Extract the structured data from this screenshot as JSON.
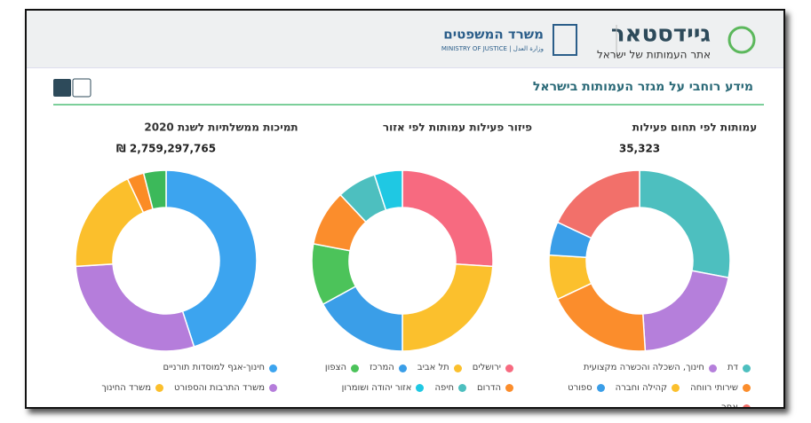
{
  "header": {
    "brand": "גיידסטאר",
    "tagline": "אתר העמותות של ישראל",
    "ministry": "משרד המשפטים",
    "ministry_en": "MINISTRY OF JUSTICE | وزارة العدل"
  },
  "section": {
    "title": "מידע רוחבי על מגזר העמותות בישראל"
  },
  "chart_data": [
    {
      "type": "pie",
      "title": "עמותות לפי תחום פעילות",
      "total": "35,323",
      "categories": [
        "דת",
        "חינוך, השכלה והכשרה מקצועית",
        "שירותי רווחה",
        "קהילה וחברה",
        "ספורט",
        "אחר"
      ],
      "values": [
        28,
        21,
        19,
        8,
        6,
        18
      ],
      "colors": [
        "#4dbfbf",
        "#b57fdb",
        "#fb8d2c",
        "#fbc02d",
        "#3a9ee8",
        "#f2706a"
      ]
    },
    {
      "type": "pie",
      "title": "פיזור פעילות עמותות לפי אזור",
      "categories": [
        "ירושלים",
        "תל אביב",
        "המרכז",
        "הצפון",
        "הדרום",
        "חיפה",
        "אזור יהודה ושומרון"
      ],
      "values": [
        26,
        24,
        17,
        11,
        10,
        7,
        5
      ],
      "colors": [
        "#f76a80",
        "#fbc02d",
        "#3a9ee8",
        "#4cc35a",
        "#fb8d2c",
        "#4dbfbf",
        "#1fc8e3"
      ]
    },
    {
      "type": "pie",
      "title": "תמיכות ממשלתיות לשנת 2020",
      "total": "₪ 2,759,297,765",
      "categories": [
        "חינוך-אגף למוסדות תורניים",
        "משרד התרבות והספורט",
        "משרד החינוך",
        null,
        null
      ],
      "values": [
        45,
        29,
        19,
        3,
        4
      ],
      "colors": [
        "#3ca4ef",
        "#b57ddb",
        "#fbbf2c",
        "#fb8c25",
        "#3cb95a"
      ]
    }
  ]
}
